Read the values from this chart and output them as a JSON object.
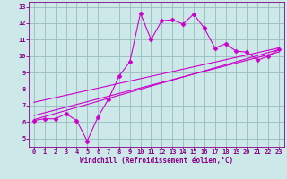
{
  "bg_color": "#cce8e8",
  "grid_color": "#99bbbb",
  "line_color": "#cc00cc",
  "x_data": [
    0,
    1,
    2,
    3,
    4,
    5,
    6,
    7,
    8,
    9,
    10,
    11,
    12,
    13,
    14,
    15,
    16,
    17,
    18,
    19,
    20,
    21,
    22,
    23
  ],
  "y_main": [
    6.1,
    6.2,
    6.2,
    6.5,
    6.1,
    4.85,
    6.3,
    7.4,
    8.8,
    9.65,
    12.6,
    11.0,
    12.15,
    12.2,
    11.95,
    12.55,
    11.7,
    10.5,
    10.75,
    10.3,
    10.25,
    9.75,
    10.0,
    10.4
  ],
  "reg_lines": [
    {
      "x0": 0,
      "y0": 6.15,
      "x1": 23,
      "y1": 10.4
    },
    {
      "x0": 0,
      "y0": 6.4,
      "x1": 23,
      "y1": 10.25
    },
    {
      "x0": 0,
      "y0": 7.2,
      "x1": 23,
      "y1": 10.5
    }
  ],
  "xlabel": "Windchill (Refroidissement éolien,°C)",
  "xlim": [
    -0.5,
    23.5
  ],
  "ylim": [
    4.5,
    13.3
  ],
  "xticks": [
    0,
    1,
    2,
    3,
    4,
    5,
    6,
    7,
    8,
    9,
    10,
    11,
    12,
    13,
    14,
    15,
    16,
    17,
    18,
    19,
    20,
    21,
    22,
    23
  ],
  "yticks": [
    5,
    6,
    7,
    8,
    9,
    10,
    11,
    12,
    13
  ],
  "tick_fontsize": 5.0,
  "xlabel_fontsize": 5.5
}
